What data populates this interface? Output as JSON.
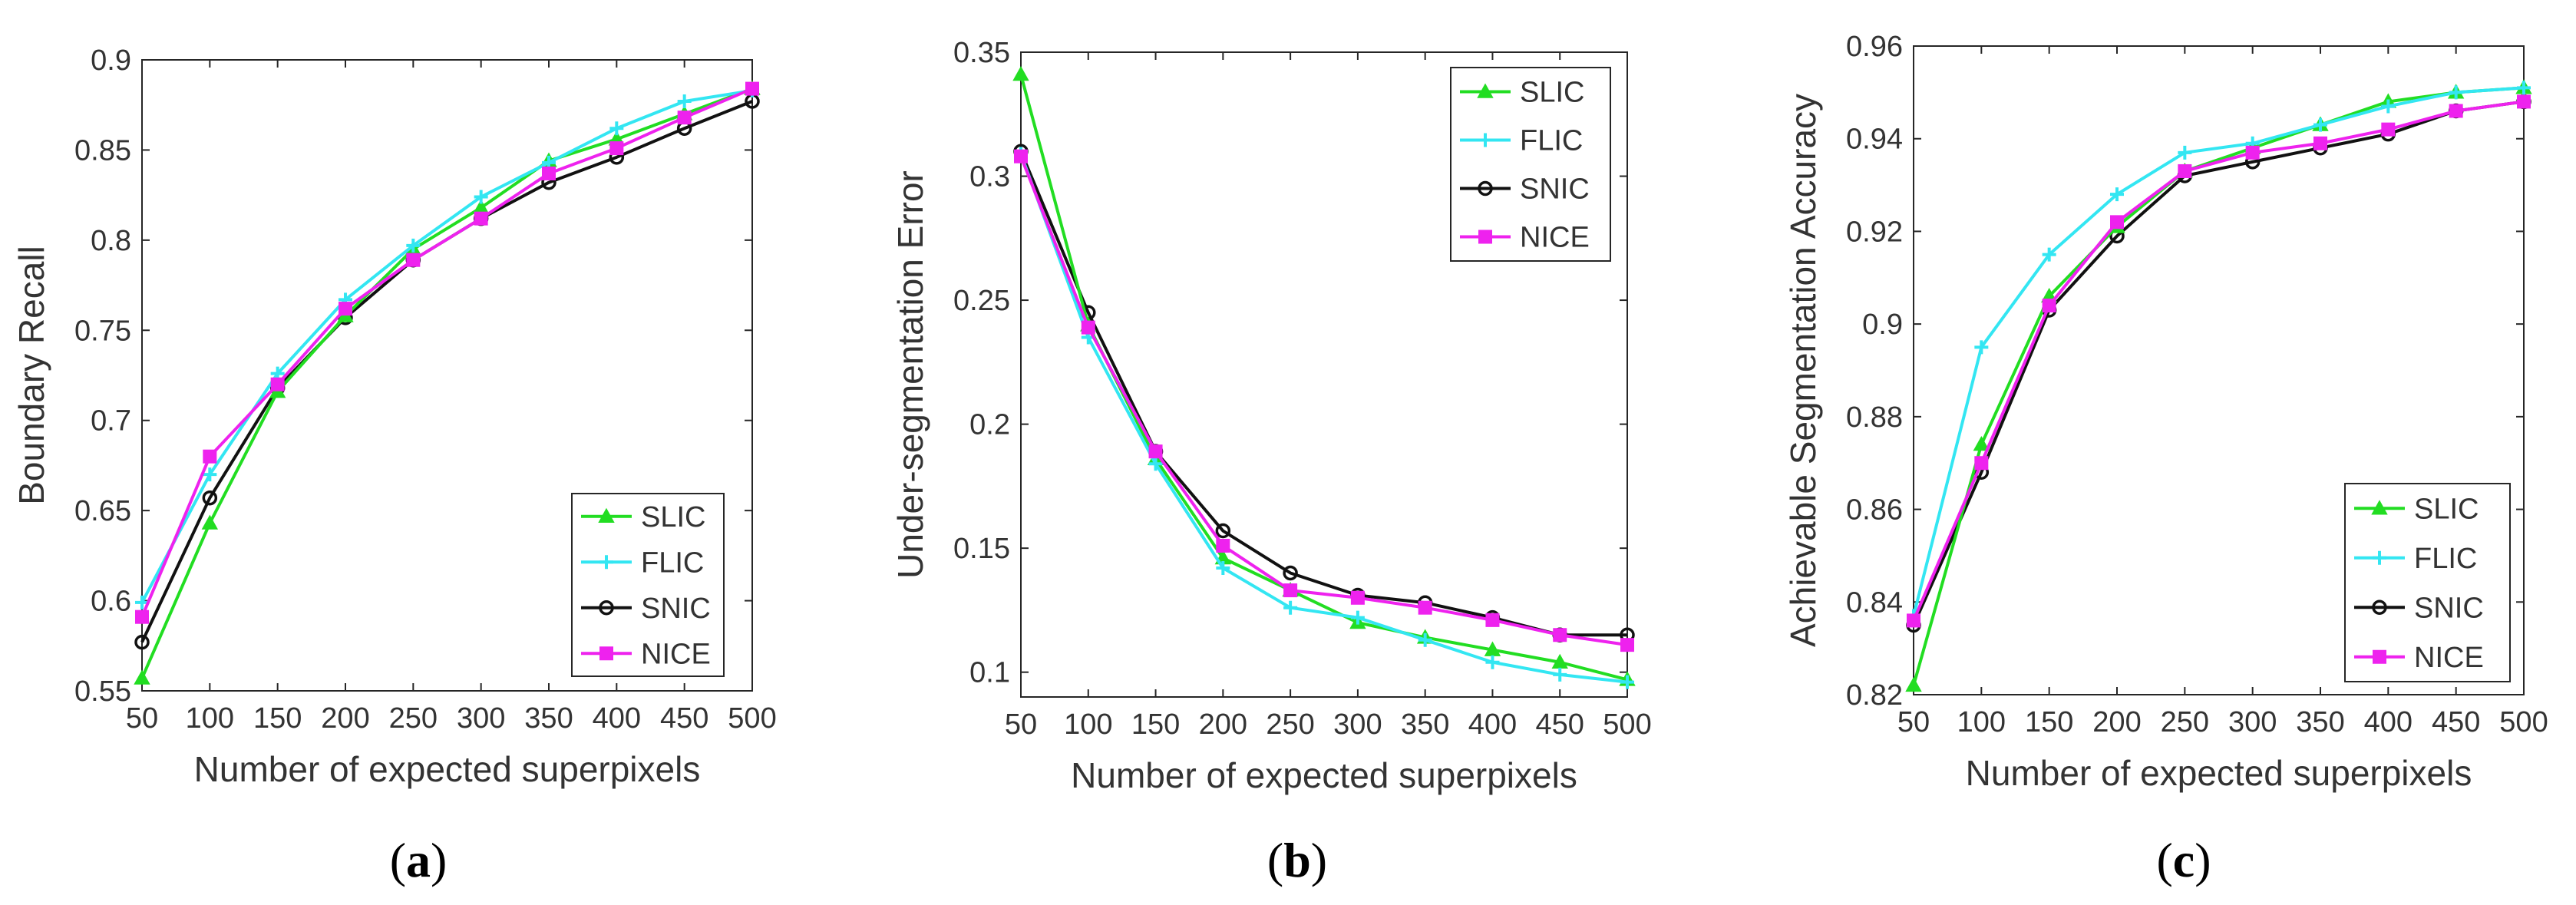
{
  "colors": {
    "SLIC": "#22dd22",
    "FLIC": "#33e6f2",
    "SNIC": "#111111",
    "NICE": "#ee22ee"
  },
  "chart_data": [
    {
      "type": "line",
      "panel": "a",
      "caption": {
        "open": "(",
        "letter": "a",
        "close": ")"
      },
      "xlabel": "Number of expected superpixels",
      "ylabel": "Boundary Recall",
      "categories": [
        50,
        100,
        150,
        200,
        250,
        300,
        350,
        400,
        450,
        500
      ],
      "xlim": [
        50,
        500
      ],
      "ylim": [
        0.55,
        0.9
      ],
      "yticks": [
        0.55,
        0.6,
        0.65,
        0.7,
        0.75,
        0.8,
        0.85,
        0.9
      ],
      "ytick_labels": [
        "0.55",
        "0.6",
        "0.65",
        "0.7",
        "0.75",
        "0.8",
        "0.85",
        "0.9"
      ],
      "legend_position": "bottom-right",
      "series": [
        {
          "name": "SLIC",
          "marker": "triangle",
          "values": [
            0.557,
            0.643,
            0.716,
            0.758,
            0.795,
            0.818,
            0.844,
            0.856,
            0.87,
            0.884
          ]
        },
        {
          "name": "FLIC",
          "marker": "plus",
          "values": [
            0.599,
            0.67,
            0.726,
            0.767,
            0.797,
            0.824,
            0.843,
            0.862,
            0.877,
            0.883
          ]
        },
        {
          "name": "SNIC",
          "marker": "circle",
          "values": [
            0.577,
            0.657,
            0.718,
            0.757,
            0.789,
            0.812,
            0.832,
            0.846,
            0.862,
            0.877
          ]
        },
        {
          "name": "NICE",
          "marker": "square",
          "values": [
            0.591,
            0.68,
            0.72,
            0.762,
            0.789,
            0.812,
            0.837,
            0.851,
            0.868,
            0.884
          ]
        }
      ]
    },
    {
      "type": "line",
      "panel": "b",
      "caption": {
        "open": "(",
        "letter": "b",
        "close": ")"
      },
      "xlabel": "Number of expected superpixels",
      "ylabel": "Under-segmentation Error",
      "categories": [
        50,
        100,
        150,
        200,
        250,
        300,
        350,
        400,
        450,
        500
      ],
      "xlim": [
        50,
        500
      ],
      "ylim": [
        0.09,
        0.35
      ],
      "yticks": [
        0.1,
        0.15,
        0.2,
        0.25,
        0.3,
        0.35
      ],
      "ytick_labels": [
        "0.1",
        "0.15",
        "0.2",
        "0.25",
        "0.3",
        "0.35"
      ],
      "legend_position": "top-right",
      "series": [
        {
          "name": "SLIC",
          "marker": "triangle",
          "values": [
            0.341,
            0.24,
            0.186,
            0.146,
            0.133,
            0.12,
            0.114,
            0.109,
            0.104,
            0.097
          ]
        },
        {
          "name": "FLIC",
          "marker": "plus",
          "values": [
            0.309,
            0.235,
            0.184,
            0.142,
            0.126,
            0.122,
            0.113,
            0.104,
            0.099,
            0.096
          ]
        },
        {
          "name": "SNIC",
          "marker": "circle",
          "values": [
            0.31,
            0.245,
            0.189,
            0.157,
            0.14,
            0.131,
            0.128,
            0.122,
            0.115,
            0.115
          ]
        },
        {
          "name": "NICE",
          "marker": "square",
          "values": [
            0.308,
            0.239,
            0.189,
            0.151,
            0.133,
            0.13,
            0.126,
            0.121,
            0.115,
            0.111
          ]
        }
      ]
    },
    {
      "type": "line",
      "panel": "c",
      "caption": {
        "open": "(",
        "letter": "c",
        "close": ")"
      },
      "xlabel": "Number of expected superpixels",
      "ylabel": "Achievable Segmentation Accuracy",
      "categories": [
        50,
        100,
        150,
        200,
        250,
        300,
        350,
        400,
        450,
        500
      ],
      "xlim": [
        50,
        500
      ],
      "ylim": [
        0.82,
        0.96
      ],
      "yticks": [
        0.82,
        0.84,
        0.86,
        0.88,
        0.9,
        0.92,
        0.94,
        0.96
      ],
      "ytick_labels": [
        "0.82",
        "0.84",
        "0.86",
        "0.88",
        "0.9",
        "0.92",
        "0.94",
        "0.96"
      ],
      "legend_position": "bottom-right",
      "series": [
        {
          "name": "SLIC",
          "marker": "triangle",
          "values": [
            0.822,
            0.874,
            0.906,
            0.921,
            0.933,
            0.938,
            0.943,
            0.948,
            0.95,
            0.951
          ]
        },
        {
          "name": "FLIC",
          "marker": "plus",
          "values": [
            0.837,
            0.895,
            0.915,
            0.928,
            0.937,
            0.939,
            0.943,
            0.947,
            0.95,
            0.951
          ]
        },
        {
          "name": "SNIC",
          "marker": "circle",
          "values": [
            0.835,
            0.868,
            0.903,
            0.919,
            0.932,
            0.935,
            0.938,
            0.941,
            0.946,
            0.948
          ]
        },
        {
          "name": "NICE",
          "marker": "square",
          "values": [
            0.836,
            0.87,
            0.904,
            0.922,
            0.933,
            0.937,
            0.939,
            0.942,
            0.946,
            0.948
          ]
        }
      ]
    }
  ]
}
